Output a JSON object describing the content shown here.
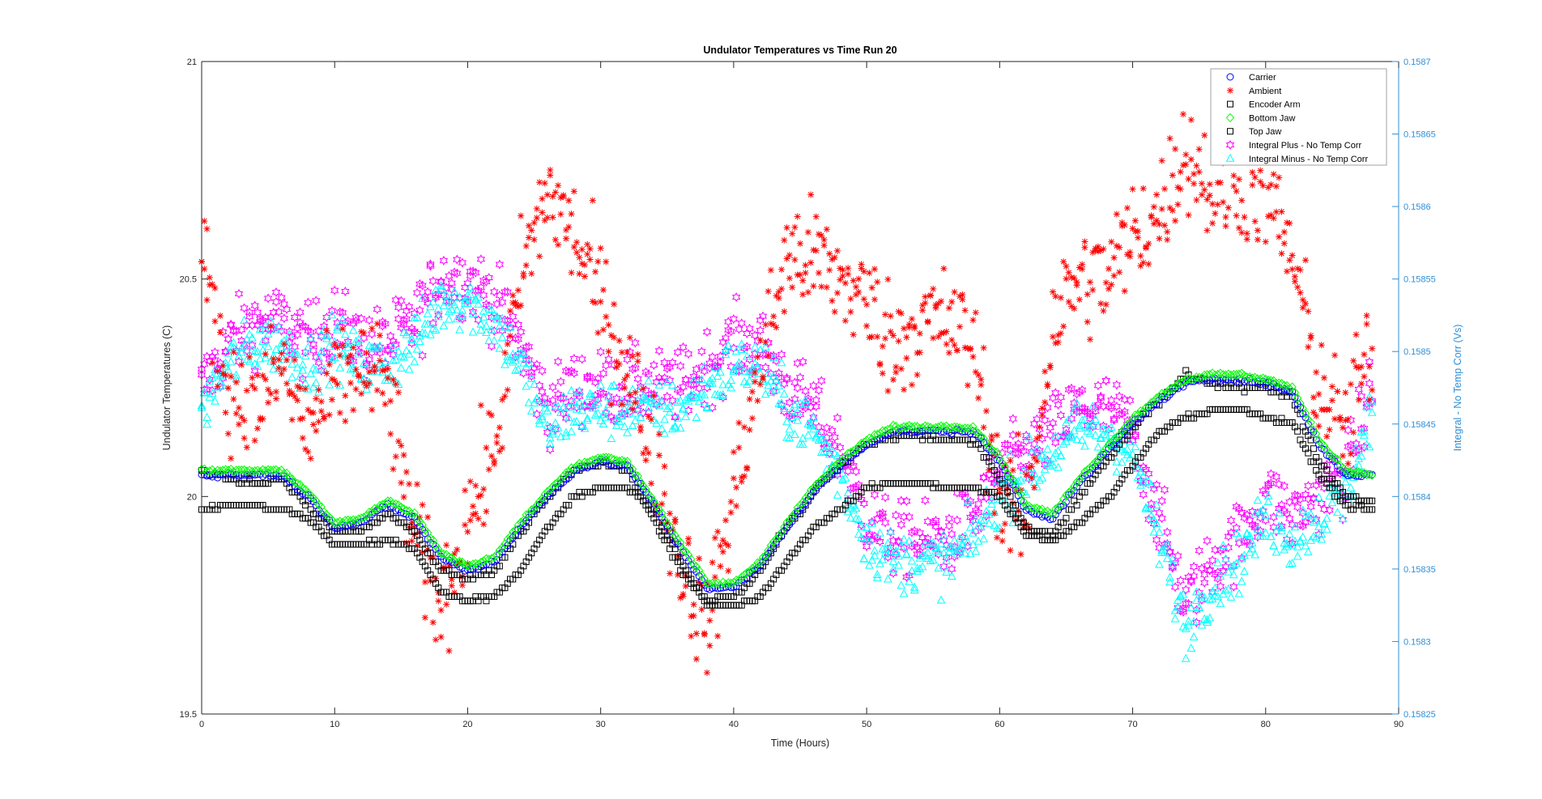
{
  "chart_data": {
    "type": "scatter",
    "title": "Undulator Temperatures vs Time Run 20",
    "xlabel": "Time (Hours)",
    "ylabel": "Undulator Temperatures (C)",
    "ylabel_right": "Integral -  No Temp Corr (Vs)",
    "xlim": [
      0,
      90
    ],
    "ylim": [
      19.5,
      21
    ],
    "ylim_right": [
      0.15825,
      0.1587
    ],
    "x_ticks": [
      "0",
      "10",
      "20",
      "30",
      "40",
      "50",
      "60",
      "70",
      "80",
      "90"
    ],
    "y_ticks": [
      "19.5",
      "20",
      "20.5",
      "21"
    ],
    "y_ticks_right": [
      "0.15825",
      "0.1583",
      "0.15835",
      "0.1584",
      "0.15845",
      "0.1585",
      "0.15855",
      "0.1586",
      "0.15865",
      "0.1587"
    ],
    "legend_position": "top-right",
    "x": [
      0,
      2,
      4,
      6,
      8,
      10,
      12,
      14,
      16,
      18,
      20,
      22,
      24,
      26,
      28,
      30,
      32,
      34,
      36,
      38,
      40,
      42,
      44,
      46,
      48,
      50,
      52,
      54,
      56,
      58,
      60,
      62,
      64,
      66,
      68,
      70,
      72,
      74,
      76,
      78,
      80,
      82,
      84,
      86,
      88
    ],
    "series": [
      {
        "name": "Carrier",
        "axis": "left",
        "marker": "circle",
        "color": "#0000ff",
        "noise": 0.005,
        "values": [
          20.05,
          20.05,
          20.05,
          20.05,
          20.0,
          19.93,
          19.94,
          19.98,
          19.95,
          19.86,
          19.83,
          19.85,
          19.93,
          20.0,
          20.06,
          20.08,
          20.07,
          19.98,
          19.88,
          19.79,
          19.79,
          19.84,
          19.93,
          20.01,
          20.07,
          20.12,
          20.15,
          20.15,
          20.15,
          20.15,
          20.08,
          19.97,
          19.95,
          20.03,
          20.1,
          20.17,
          20.22,
          20.26,
          20.27,
          20.27,
          20.26,
          20.24,
          20.12,
          20.05,
          20.05
        ]
      },
      {
        "name": "Ambient",
        "axis": "left",
        "marker": "asterisk",
        "color": "#ff0000",
        "noise": 0.13,
        "values": [
          20.55,
          20.25,
          20.2,
          20.3,
          20.15,
          20.25,
          20.3,
          20.25,
          19.9,
          19.75,
          19.95,
          20.1,
          20.5,
          20.7,
          20.6,
          20.45,
          20.3,
          20.1,
          19.85,
          19.7,
          20.0,
          20.3,
          20.55,
          20.55,
          20.5,
          20.45,
          20.35,
          20.4,
          20.4,
          20.35,
          20.0,
          19.95,
          20.4,
          20.5,
          20.5,
          20.6,
          20.65,
          20.8,
          20.7,
          20.72,
          20.7,
          20.55,
          20.25,
          20.15,
          20.35
        ]
      },
      {
        "name": "Encoder Arm",
        "axis": "left",
        "marker": "square",
        "color": "#000000",
        "noise": 0.004,
        "values": [
          19.97,
          19.98,
          19.98,
          19.97,
          19.95,
          19.89,
          19.89,
          19.9,
          19.88,
          19.78,
          19.76,
          19.77,
          19.83,
          19.93,
          20.0,
          20.02,
          20.02,
          19.97,
          19.85,
          19.75,
          19.75,
          19.77,
          19.85,
          19.93,
          19.97,
          20.02,
          20.03,
          20.03,
          20.02,
          20.02,
          20.0,
          19.91,
          19.9,
          19.94,
          19.99,
          20.07,
          20.15,
          20.18,
          20.2,
          20.2,
          20.18,
          20.17,
          20.05,
          19.98,
          19.97
        ]
      },
      {
        "name": "Bottom Jaw",
        "axis": "left",
        "marker": "diamond",
        "color": "#00ff00",
        "noise": 0.004,
        "values": [
          20.06,
          20.06,
          20.06,
          20.06,
          20.01,
          19.94,
          19.95,
          19.99,
          19.96,
          19.87,
          19.84,
          19.86,
          19.94,
          20.01,
          20.07,
          20.09,
          20.08,
          19.99,
          19.89,
          19.8,
          19.8,
          19.85,
          19.94,
          20.02,
          20.08,
          20.13,
          20.16,
          20.16,
          20.16,
          20.16,
          20.09,
          19.98,
          19.96,
          20.04,
          20.11,
          20.18,
          20.23,
          20.27,
          20.28,
          20.28,
          20.27,
          20.25,
          20.13,
          20.06,
          20.05
        ]
      },
      {
        "name": "Top Jaw",
        "axis": "left",
        "marker": "square",
        "color": "#000000",
        "noise": 0.006,
        "values": [
          20.06,
          20.04,
          20.03,
          20.04,
          19.98,
          19.92,
          19.92,
          19.96,
          19.92,
          19.83,
          19.81,
          19.83,
          19.92,
          20.0,
          20.06,
          20.08,
          20.06,
          19.95,
          19.83,
          19.76,
          19.77,
          19.83,
          19.93,
          20.01,
          20.07,
          20.12,
          20.14,
          20.14,
          20.13,
          20.13,
          20.04,
          19.93,
          19.91,
          20.0,
          20.08,
          20.16,
          20.22,
          20.28,
          20.26,
          20.25,
          20.25,
          20.23,
          20.08,
          20.0,
          19.99
        ]
      },
      {
        "name": "Integral Plus -  No Temp Corr",
        "axis": "right",
        "marker": "hexagram",
        "color": "#ff00ff",
        "noise": 2.5e-05,
        "values": [
          0.158475,
          0.158505,
          0.15852,
          0.15852,
          0.158505,
          0.15852,
          0.158505,
          0.158505,
          0.15852,
          0.15855,
          0.15855,
          0.158535,
          0.158505,
          0.15846,
          0.158475,
          0.158475,
          0.158475,
          0.158475,
          0.158475,
          0.15849,
          0.158505,
          0.158505,
          0.158475,
          0.15846,
          0.15843,
          0.158385,
          0.15837,
          0.15837,
          0.15837,
          0.158385,
          0.158415,
          0.15843,
          0.158445,
          0.15846,
          0.15846,
          0.158445,
          0.158385,
          0.158325,
          0.158355,
          0.15837,
          0.1584,
          0.158385,
          0.1584,
          0.158415,
          0.158475
        ]
      },
      {
        "name": "Integral Minus -  No Temp Corr",
        "axis": "right",
        "marker": "triangle",
        "color": "#00ffff",
        "noise": 2e-05,
        "values": [
          0.15846,
          0.15849,
          0.158505,
          0.158505,
          0.15849,
          0.158505,
          0.15849,
          0.15849,
          0.158505,
          0.158535,
          0.158535,
          0.15852,
          0.15849,
          0.158445,
          0.15846,
          0.15846,
          0.15846,
          0.15846,
          0.15846,
          0.158475,
          0.15849,
          0.15849,
          0.15846,
          0.158445,
          0.158415,
          0.15837,
          0.158355,
          0.158355,
          0.158355,
          0.15837,
          0.1584,
          0.158415,
          0.15843,
          0.158445,
          0.158445,
          0.15843,
          0.15837,
          0.15831,
          0.15834,
          0.158355,
          0.158385,
          0.15837,
          0.158385,
          0.1584,
          0.15846
        ]
      }
    ]
  }
}
